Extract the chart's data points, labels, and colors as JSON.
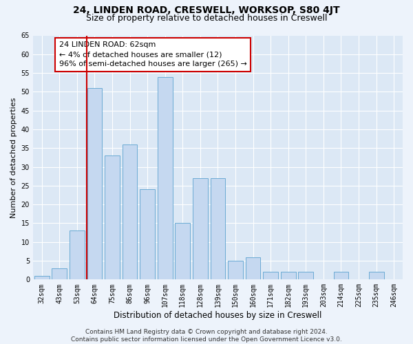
{
  "title1": "24, LINDEN ROAD, CRESWELL, WORKSOP, S80 4JT",
  "title2": "Size of property relative to detached houses in Creswell",
  "xlabel": "Distribution of detached houses by size in Creswell",
  "ylabel": "Number of detached properties",
  "categories": [
    "32sqm",
    "43sqm",
    "53sqm",
    "64sqm",
    "75sqm",
    "86sqm",
    "96sqm",
    "107sqm",
    "118sqm",
    "128sqm",
    "139sqm",
    "150sqm",
    "160sqm",
    "171sqm",
    "182sqm",
    "193sqm",
    "203sqm",
    "214sqm",
    "225sqm",
    "235sqm",
    "246sqm"
  ],
  "values": [
    1,
    3,
    13,
    51,
    33,
    36,
    24,
    54,
    15,
    27,
    27,
    5,
    6,
    2,
    2,
    2,
    0,
    2,
    0,
    2,
    0
  ],
  "bar_color": "#c5d8f0",
  "bar_edge_color": "#6aaad4",
  "vline_color": "#cc0000",
  "annotation_text": "24 LINDEN ROAD: 62sqm\n← 4% of detached houses are smaller (12)\n96% of semi-detached houses are larger (265) →",
  "ylim": [
    0,
    65
  ],
  "yticks": [
    0,
    5,
    10,
    15,
    20,
    25,
    30,
    35,
    40,
    45,
    50,
    55,
    60,
    65
  ],
  "plot_bg_color": "#dce8f5",
  "fig_bg_color": "#edf3fb",
  "grid_color": "#ffffff",
  "footer_text": "Contains HM Land Registry data © Crown copyright and database right 2024.\nContains public sector information licensed under the Open Government Licence v3.0.",
  "title1_fontsize": 10,
  "title2_fontsize": 9,
  "xlabel_fontsize": 8.5,
  "ylabel_fontsize": 8,
  "tick_fontsize": 7,
  "ann_fontsize": 8,
  "footer_fontsize": 6.5
}
